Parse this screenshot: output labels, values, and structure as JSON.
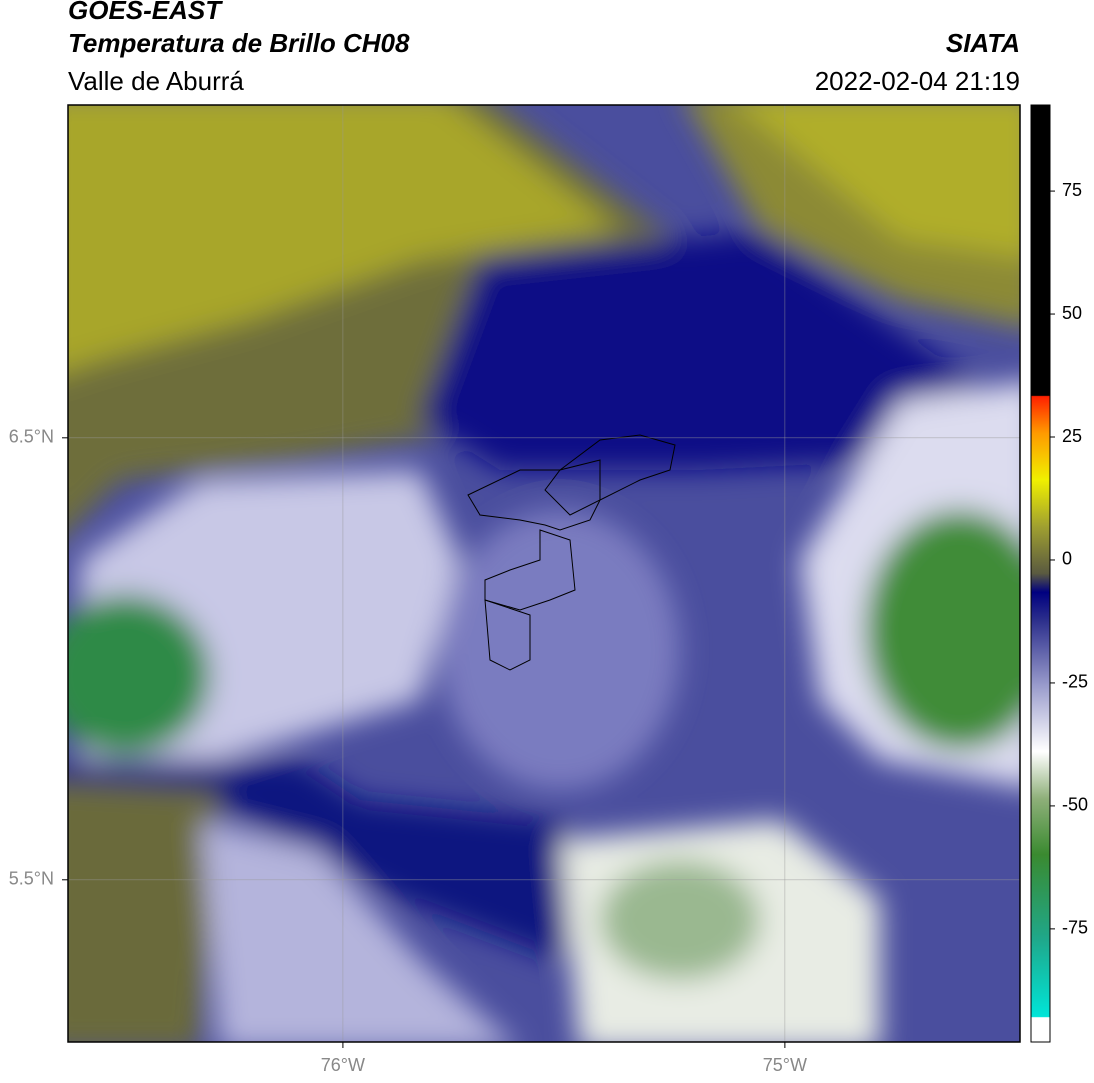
{
  "header": {
    "title": "GOES-EAST",
    "subtitle": "Temperatura de Brillo CH08",
    "region": "Valle de Aburrá",
    "agency": "SIATA",
    "datetime": "2022-02-04 21:19"
  },
  "map": {
    "xlim": [
      -76.622,
      -74.468
    ],
    "ylim": [
      5.133,
      7.253
    ],
    "xticks": [
      {
        "value": -76,
        "label": "76°W"
      },
      {
        "value": -75,
        "label": "75°W"
      }
    ],
    "yticks": [
      {
        "value": 6.5,
        "label": "6.5°N"
      },
      {
        "value": 5.5,
        "label": "5.5°N"
      }
    ],
    "grid": true
  },
  "colorbar": {
    "vlim": [
      -98,
      92.5
    ],
    "ticks": [
      75,
      50,
      25,
      0,
      -25,
      -50,
      -75
    ]
  }
}
